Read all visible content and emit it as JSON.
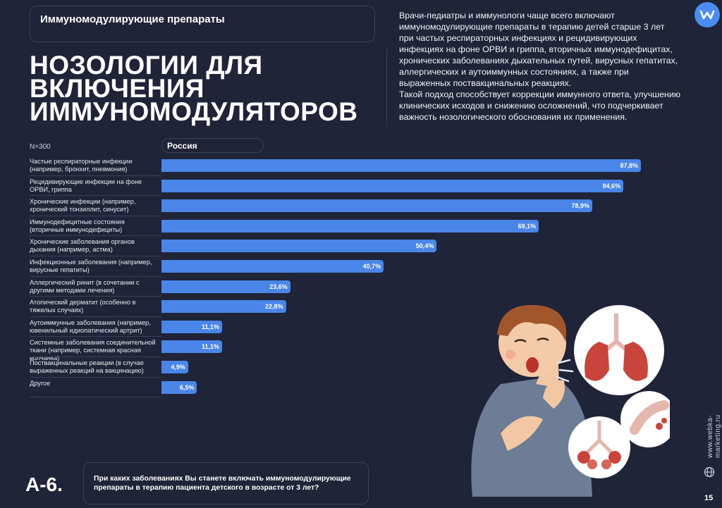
{
  "header": {
    "section_title": "Иммуномодулирующие препараты",
    "main_title_lines": [
      "НОЗОЛОГИИ ДЛЯ",
      "ВКЛЮЧЕНИЯ",
      "ИММУНОМОДУЛЯТОРОВ"
    ],
    "description_p1": "Врачи-педиатры и иммунологи чаще всего включают иммуномодулирующие препараты в терапию детей старше 3 лет при частых респираторных инфекциях и рецидивирующих инфекциях на фоне ОРВИ и гриппа, вторичных иммунодефицитах, хронических заболеваниях дыхательных путей, вирусных гепатитах, аллергических и аутоиммунных состояниях, а также при выраженных поствакцинальных реакциях.",
    "description_p2": "Такой подход способствует коррекции иммунного ответа, улучшению клинических исходов и снижению осложнений, что подчеркивает важность нозологического обоснования их применения.",
    "logo_letter": "w"
  },
  "chart_data": {
    "type": "bar",
    "orientation": "horizontal",
    "sample_size": "N=300",
    "series_name": "Россия",
    "categories": [
      "Частые респираторные инфекции (например, бронхит, пневмония)",
      "Рецидивирующие инфекции на фоне ОРВИ, гриппа",
      "Хронические инфекции (например, хронический тонзиллит, синусит)",
      "Иммунодефицитные состояния (вторичные иммунодефициты)",
      "Хронические заболевания органов дыхания (например, астма)",
      "Инфекционные заболевания (например, вирусные гепатиты)",
      "Аллергический ринит (в сочетании с другими методами лечения)",
      "Атопический дерматит (особенно в тяжелых случаях)",
      "Аутоиммунные заболевания (например, ювенильный идиопатический артрит)",
      "Системные заболевания соединительной ткани (например, системная красная волчанка)",
      "Поствакцинальные реакции (в случае выраженных реакций на вакцинацию)",
      "Другое"
    ],
    "values": [
      87.8,
      84.6,
      78.9,
      69.1,
      50.4,
      40.7,
      23.6,
      22.8,
      11.1,
      11.1,
      4.9,
      6.5
    ],
    "value_labels": [
      "87,8%",
      "84,6%",
      "78,9%",
      "69,1%",
      "50,4%",
      "40,7%",
      "23,6%",
      "22,8%",
      "11,1%",
      "11,1%",
      "4,9%",
      "6,5%"
    ],
    "xlim": [
      0,
      100
    ],
    "bar_color": "#4a86e8"
  },
  "footer": {
    "question_code": "А-6.",
    "question_text": "При каких заболеваниях Вы станете включать иммуномодулирующие препараты в терапию пациента детского в возрасте от 3 лет?",
    "website": "www.webka-marketing.ru",
    "page_number": "15"
  }
}
